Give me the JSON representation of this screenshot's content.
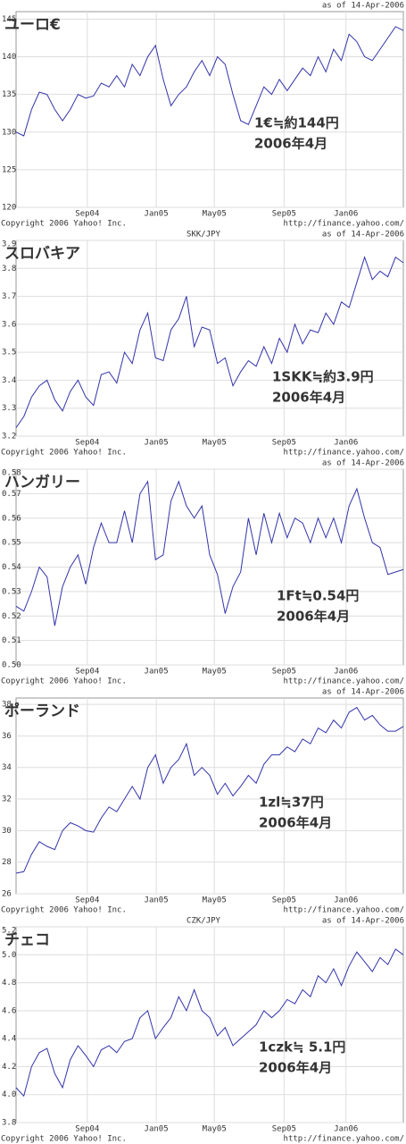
{
  "chart_data": [
    {
      "type": "line",
      "title": "ユーロ€",
      "title_color": "#000000",
      "date_note": "as of 14-Apr-2006",
      "copyright": "Copyright 2006 Yahoo! Inc.",
      "source": "http://finance.yahoo.com/",
      "annotations": [
        {
          "text": "1€≒約144円",
          "color": "#9933cc"
        },
        {
          "text": "2006年4月",
          "color": "#9933cc"
        }
      ],
      "color": "#3333aa",
      "grid": true,
      "xlim": [
        0,
        50
      ],
      "xticks": [
        {
          "value": 9.2,
          "label": "Sep04"
        },
        {
          "value": 18.1,
          "label": "Jan05"
        },
        {
          "value": 25.6,
          "label": "May05"
        },
        {
          "value": 34.6,
          "label": "Sep05"
        },
        {
          "value": 42.6,
          "label": "Jan06"
        }
      ],
      "ylim": [
        120,
        146
      ],
      "yticks": [
        120,
        125,
        130,
        135,
        140,
        145
      ],
      "values": [
        130,
        129.5,
        133,
        135.3,
        135,
        133,
        131.5,
        133,
        135,
        134.5,
        134.8,
        136.5,
        136,
        137.5,
        136,
        139,
        137.5,
        140,
        141.5,
        137,
        133.5,
        135,
        136,
        138,
        139.5,
        137.5,
        140,
        139,
        135,
        131.5,
        131,
        133.5,
        136,
        135,
        137,
        135.5,
        137,
        138.5,
        137.5,
        140,
        138,
        141,
        139.5,
        143,
        142,
        140,
        139.5,
        141,
        142.5,
        144,
        143.5
      ]
    },
    {
      "type": "line",
      "title": "スロバキア",
      "title_color": "#9933cc",
      "subtitle": "SKK/JPY",
      "date_note": "as of 14-Apr-2006",
      "copyright": "Copyright 2006 Yahoo! Inc.",
      "source": "http://finance.yahoo.com/",
      "annotations": [
        {
          "text": "1SKK≒約3.9円",
          "color": "#777777"
        },
        {
          "text": "2006年4月",
          "color": "#777777"
        }
      ],
      "color": "#3333aa",
      "grid": true,
      "xlim": [
        0,
        50
      ],
      "xticks": [
        {
          "value": 9.2,
          "label": "Sep04"
        },
        {
          "value": 18.1,
          "label": "Jan05"
        },
        {
          "value": 25.6,
          "label": "May05"
        },
        {
          "value": 34.6,
          "label": "Sep05"
        },
        {
          "value": 42.6,
          "label": "Jan06"
        }
      ],
      "ylim": [
        3.2,
        3.9
      ],
      "yticks": [
        3.2,
        3.3,
        3.4,
        3.5,
        3.6,
        3.7,
        3.8,
        3.9
      ],
      "values": [
        3.23,
        3.27,
        3.34,
        3.38,
        3.4,
        3.33,
        3.29,
        3.36,
        3.4,
        3.34,
        3.31,
        3.42,
        3.43,
        3.39,
        3.5,
        3.46,
        3.58,
        3.64,
        3.48,
        3.47,
        3.58,
        3.62,
        3.7,
        3.52,
        3.59,
        3.58,
        3.46,
        3.48,
        3.38,
        3.43,
        3.47,
        3.45,
        3.52,
        3.46,
        3.55,
        3.5,
        3.6,
        3.53,
        3.58,
        3.57,
        3.64,
        3.6,
        3.68,
        3.66,
        3.75,
        3.84,
        3.76,
        3.79,
        3.77,
        3.84,
        3.82
      ]
    },
    {
      "type": "line",
      "title": "ハンガリー",
      "title_color": "#33aa33",
      "date_note": "as of 14-Apr-2006",
      "copyright": "Copyright 2006 Yahoo! Inc.",
      "source": "http://finance.yahoo.com/",
      "annotations": [
        {
          "text": "1Ft≒0.54円",
          "color": "#000000"
        },
        {
          "text": "2006年4月",
          "color": "#000000"
        }
      ],
      "color": "#3333aa",
      "grid": true,
      "xlim": [
        0,
        50
      ],
      "xticks": [
        {
          "value": 9.2,
          "label": "Sep04"
        },
        {
          "value": 18.1,
          "label": "Jan05"
        },
        {
          "value": 25.6,
          "label": "May05"
        },
        {
          "value": 34.6,
          "label": "Sep05"
        },
        {
          "value": 42.6,
          "label": "Jan06"
        }
      ],
      "ylim": [
        0.5,
        0.58
      ],
      "yticks": [
        {
          "value": 0.5,
          "label": "0.50"
        },
        0.51,
        0.52,
        0.53,
        0.54,
        0.55,
        0.56,
        0.57,
        0.58
      ],
      "values": [
        0.524,
        0.522,
        0.53,
        0.54,
        0.536,
        0.516,
        0.532,
        0.54,
        0.545,
        0.533,
        0.548,
        0.558,
        0.55,
        0.55,
        0.563,
        0.55,
        0.57,
        0.575,
        0.543,
        0.545,
        0.567,
        0.575,
        0.565,
        0.56,
        0.565,
        0.545,
        0.537,
        0.521,
        0.532,
        0.538,
        0.56,
        0.545,
        0.562,
        0.55,
        0.562,
        0.552,
        0.56,
        0.558,
        0.55,
        0.56,
        0.552,
        0.56,
        0.55,
        0.565,
        0.572,
        0.56,
        0.55,
        0.548,
        0.537,
        0.538,
        0.539
      ]
    },
    {
      "type": "line",
      "title": "ポーランド",
      "title_color": "#e0307f",
      "date_note": "as of 14-Apr-2006",
      "copyright": "Copyright 2006 Yahoo! Inc.",
      "source": "http://finance.yahoo.com/",
      "annotations": [
        {
          "text": "1zl≒37円",
          "color": "#e03030"
        },
        {
          "text": "2006年4月",
          "color": "#000000"
        }
      ],
      "color": "#3333aa",
      "grid": true,
      "xlim": [
        0,
        50
      ],
      "xticks": [
        {
          "value": 9.2,
          "label": "Sep04"
        },
        {
          "value": 18.1,
          "label": "Jan05"
        },
        {
          "value": 25.6,
          "label": "May05"
        },
        {
          "value": 34.6,
          "label": "Sep05"
        },
        {
          "value": 42.6,
          "label": "Jan06"
        }
      ],
      "ylim": [
        26,
        38.4
      ],
      "yticks": [
        26,
        28,
        30,
        32,
        34,
        36,
        38
      ],
      "values": [
        27.3,
        27.4,
        28.5,
        29.3,
        29,
        28.8,
        30,
        30.5,
        30.3,
        30,
        29.9,
        30.8,
        31.5,
        31.2,
        32,
        32.8,
        32,
        34,
        34.8,
        33,
        34,
        34.5,
        35.5,
        33.5,
        34,
        33.5,
        32.3,
        33,
        32.2,
        32.8,
        33.5,
        33,
        34.2,
        34.8,
        34.8,
        35.3,
        35,
        35.8,
        35.5,
        36.5,
        36.2,
        37,
        36.5,
        37.5,
        37.8,
        37,
        37.3,
        36.7,
        36.3,
        36.3,
        36.6
      ]
    },
    {
      "type": "line",
      "title": "チェコ",
      "title_color": "#88cc33",
      "subtitle": "CZK/JPY",
      "date_note": "as of 14-Apr-2006",
      "copyright": "Copyright 2006 Yahoo! Inc.",
      "source": "http://finance.yahoo.com/",
      "annotations": [
        {
          "text": "1czk≒ 5.1円",
          "color": "#66bb22"
        },
        {
          "text": "2006年4月",
          "color": "#9933cc"
        }
      ],
      "color": "#3333aa",
      "grid": true,
      "xlim": [
        0,
        50
      ],
      "xticks": [
        {
          "value": 9.2,
          "label": "Sep04"
        },
        {
          "value": 18.1,
          "label": "Jan05"
        },
        {
          "value": 25.6,
          "label": "May05"
        },
        {
          "value": 34.6,
          "label": "Sep05"
        },
        {
          "value": 42.6,
          "label": "Jan06"
        }
      ],
      "ylim": [
        3.8,
        5.2
      ],
      "yticks": [
        {
          "value": 3.8,
          "label": "3.8"
        },
        {
          "value": 4.0,
          "label": "4.0"
        },
        4.2,
        4.4,
        4.6,
        4.8,
        {
          "value": 5.0,
          "label": "5.0"
        },
        5.2
      ],
      "values": [
        4.05,
        3.99,
        4.2,
        4.3,
        4.33,
        4.15,
        4.05,
        4.25,
        4.35,
        4.28,
        4.2,
        4.32,
        4.35,
        4.3,
        4.38,
        4.4,
        4.55,
        4.6,
        4.4,
        4.48,
        4.55,
        4.7,
        4.6,
        4.75,
        4.6,
        4.55,
        4.42,
        4.48,
        4.35,
        4.4,
        4.45,
        4.5,
        4.6,
        4.55,
        4.6,
        4.68,
        4.65,
        4.75,
        4.7,
        4.85,
        4.8,
        4.9,
        4.78,
        4.92,
        5.02,
        4.95,
        4.88,
        4.98,
        4.93,
        5.04,
        5.0
      ]
    }
  ]
}
